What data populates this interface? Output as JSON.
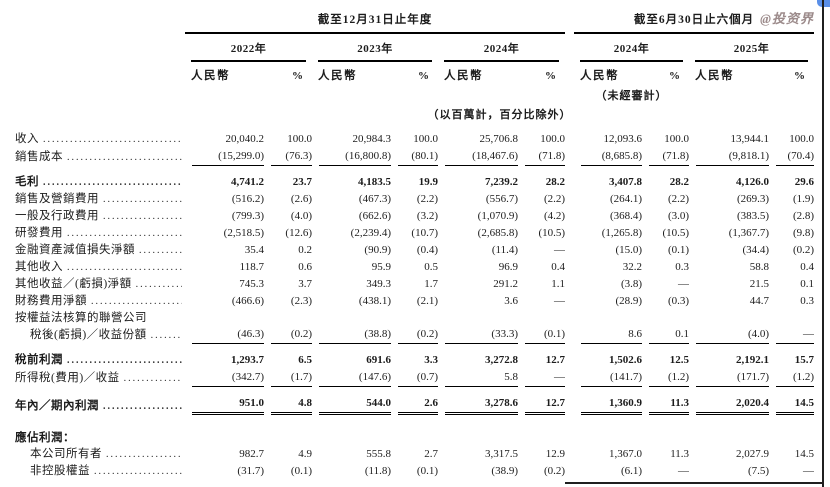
{
  "watermark": "@投资界",
  "table": {
    "col_groups": [
      {
        "title": "截至12月31日止年度",
        "years": [
          "2022年",
          "2023年",
          "2024年"
        ]
      },
      {
        "title": "截至6月30日止六個月",
        "years": [
          "2024年",
          "2025年"
        ]
      }
    ],
    "currency_header": "人民幣",
    "percent_header": "%",
    "unaudited_note": "（未經審計）",
    "unit_note": "（以百萬計，百分比除外）",
    "rows": [
      {
        "label": "收入",
        "dots": true,
        "values": [
          "20,040.2",
          "100.0",
          "20,984.3",
          "100.0",
          "25,706.8",
          "100.0",
          "12,093.6",
          "100.0",
          "13,944.1",
          "100.0"
        ]
      },
      {
        "label": "銷售成本",
        "dots": true,
        "rule": "single",
        "values": [
          "(15,299.0)",
          "(76.3)",
          "(16,800.8)",
          "(80.1)",
          "(18,467.6)",
          "(71.8)",
          "(8,685.8)",
          "(71.8)",
          "(9,818.1)",
          "(70.4)"
        ]
      },
      {
        "label": "毛利",
        "dots": true,
        "bold": true,
        "gap": true,
        "values": [
          "4,741.2",
          "23.7",
          "4,183.5",
          "19.9",
          "7,239.2",
          "28.2",
          "3,407.8",
          "28.2",
          "4,126.0",
          "29.6"
        ]
      },
      {
        "label": "銷售及營銷費用",
        "dots": true,
        "values": [
          "(516.2)",
          "(2.6)",
          "(467.3)",
          "(2.2)",
          "(556.7)",
          "(2.2)",
          "(264.1)",
          "(2.2)",
          "(269.3)",
          "(1.9)"
        ]
      },
      {
        "label": "一般及行政費用",
        "dots": true,
        "values": [
          "(799.3)",
          "(4.0)",
          "(662.6)",
          "(3.2)",
          "(1,070.9)",
          "(4.2)",
          "(368.4)",
          "(3.0)",
          "(383.5)",
          "(2.8)"
        ]
      },
      {
        "label": "研發費用",
        "dots": true,
        "values": [
          "(2,518.5)",
          "(12.6)",
          "(2,239.4)",
          "(10.7)",
          "(2,685.8)",
          "(10.5)",
          "(1,265.8)",
          "(10.5)",
          "(1,367.7)",
          "(9.8)"
        ]
      },
      {
        "label": "金融資產減值損失淨額",
        "dots": true,
        "values": [
          "35.4",
          "0.2",
          "(90.9)",
          "(0.4)",
          "(11.4)",
          "—",
          "(15.0)",
          "(0.1)",
          "(34.4)",
          "(0.2)"
        ]
      },
      {
        "label": "其他收入",
        "dots": true,
        "values": [
          "118.7",
          "0.6",
          "95.9",
          "0.5",
          "96.9",
          "0.4",
          "32.2",
          "0.3",
          "58.8",
          "0.4"
        ]
      },
      {
        "label": "其他收益／(虧損)淨額",
        "dots": true,
        "values": [
          "745.3",
          "3.7",
          "349.3",
          "1.7",
          "291.2",
          "1.1",
          "(3.8)",
          "—",
          "21.5",
          "0.1"
        ]
      },
      {
        "label": "財務費用淨額",
        "dots": true,
        "values": [
          "(466.6)",
          "(2.3)",
          "(438.1)",
          "(2.1)",
          "3.6",
          "—",
          "(28.9)",
          "(0.3)",
          "44.7",
          "0.3"
        ]
      },
      {
        "label": "按權益法核算的聯營公司",
        "dots": false,
        "values": [
          "",
          "",
          "",
          "",
          "",
          "",
          "",
          "",
          "",
          ""
        ]
      },
      {
        "label": "稅後(虧損)／收益份額",
        "dots": true,
        "indent": true,
        "rule": "single",
        "values": [
          "(46.3)",
          "(0.2)",
          "(38.8)",
          "(0.2)",
          "(33.3)",
          "(0.1)",
          "8.6",
          "0.1",
          "(4.0)",
          "—"
        ]
      },
      {
        "label": "稅前利潤",
        "dots": true,
        "bold": true,
        "gap": true,
        "values": [
          "1,293.7",
          "6.5",
          "691.6",
          "3.3",
          "3,272.8",
          "12.7",
          "1,502.6",
          "12.5",
          "2,192.1",
          "15.7"
        ]
      },
      {
        "label": "所得稅(費用)／收益",
        "dots": true,
        "rule": "single",
        "values": [
          "(342.7)",
          "(1.7)",
          "(147.6)",
          "(0.7)",
          "5.8",
          "—",
          "(141.7)",
          "(1.2)",
          "(171.7)",
          "(1.2)"
        ]
      },
      {
        "label": "年內／期內利潤",
        "dots": true,
        "bold": true,
        "gap": true,
        "rule": "double",
        "values": [
          "951.0",
          "4.8",
          "544.0",
          "2.6",
          "3,278.6",
          "12.7",
          "1,360.9",
          "11.3",
          "2,020.4",
          "14.5"
        ]
      },
      {
        "spacer": true
      },
      {
        "label": "應佔利潤：",
        "dots": false,
        "bold": true,
        "values": [
          "",
          "",
          "",
          "",
          "",
          "",
          "",
          "",
          "",
          ""
        ]
      },
      {
        "label": "本公司所有者",
        "dots": true,
        "indent": true,
        "values": [
          "982.7",
          "4.9",
          "555.8",
          "2.7",
          "3,317.5",
          "12.9",
          "1,367.0",
          "11.3",
          "2,027.9",
          "14.5"
        ]
      },
      {
        "label": "非控股權益",
        "dots": true,
        "indent": true,
        "values": [
          "(31.7)",
          "(0.1)",
          "(11.8)",
          "(0.1)",
          "(38.9)",
          "(0.2)",
          "(6.1)",
          "—",
          "(7.5)",
          "—"
        ]
      }
    ]
  }
}
